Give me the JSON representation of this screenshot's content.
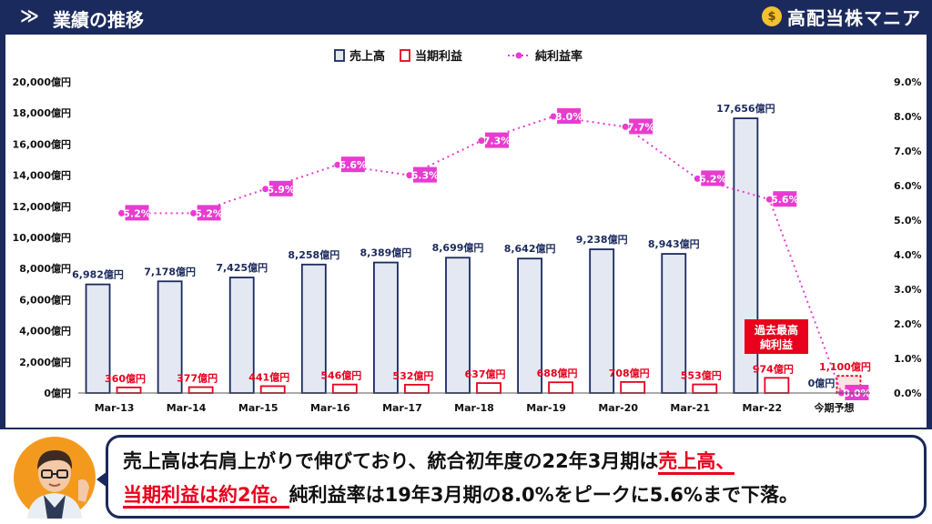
{
  "header": {
    "chevron": "≫",
    "title": "業績の推移"
  },
  "brand": {
    "icon_glyph": "$",
    "icon_name": "money-bag-icon",
    "name": "高配当株マニア"
  },
  "legend": {
    "sales": "売上高",
    "profit": "当期利益",
    "margin": "純利益率"
  },
  "annotation": {
    "line1": "過去最高",
    "line2": "純利益"
  },
  "chart_data": {
    "type": "bar",
    "categories": [
      "Mar-13",
      "Mar-14",
      "Mar-15",
      "Mar-16",
      "Mar-17",
      "Mar-18",
      "Mar-19",
      "Mar-20",
      "Mar-21",
      "Mar-22",
      "今期予想"
    ],
    "series": [
      {
        "name": "売上高",
        "type": "bar",
        "axis": "left",
        "values": [
          6982,
          7178,
          7425,
          8258,
          8389,
          8699,
          8642,
          9238,
          8943,
          17656,
          0
        ],
        "labels": [
          "6,982億円",
          "7,178億円",
          "7,425億円",
          "8,258億円",
          "8,389億円",
          "8,699億円",
          "8,642億円",
          "9,238億円",
          "8,943億円",
          "17,656億円",
          "0億円"
        ]
      },
      {
        "name": "当期利益",
        "type": "bar",
        "axis": "left",
        "values": [
          360,
          377,
          441,
          546,
          532,
          637,
          688,
          708,
          553,
          974,
          1100
        ],
        "labels": [
          "360億円",
          "377億円",
          "441億円",
          "546億円",
          "532億円",
          "637億円",
          "688億円",
          "708億円",
          "553億円",
          "974億円",
          "1,100億円"
        ]
      },
      {
        "name": "純利益率",
        "type": "line",
        "axis": "right",
        "values": [
          5.2,
          5.2,
          5.9,
          6.6,
          6.3,
          7.3,
          8.0,
          7.7,
          6.2,
          5.6,
          0.0
        ],
        "labels": [
          "5.2%",
          "5.2%",
          "5.9%",
          "6.6%",
          "6.3%",
          "7.3%",
          "8.0%",
          "7.7%",
          "6.2%",
          "5.6%",
          "0.0%"
        ]
      }
    ],
    "y_left": {
      "ylim": [
        0,
        20000
      ],
      "ticks": [
        0,
        2000,
        4000,
        6000,
        8000,
        10000,
        12000,
        14000,
        16000,
        18000,
        20000
      ],
      "tick_labels": [
        "0億円",
        "2,000億円",
        "4,000億円",
        "6,000億円",
        "8,000億円",
        "10,000億円",
        "12,000億円",
        "14,000億円",
        "16,000億円",
        "18,000億円",
        "20,000億円"
      ]
    },
    "y_right": {
      "ylim": [
        0,
        9
      ],
      "ticks": [
        0,
        1,
        2,
        3,
        4,
        5,
        6,
        7,
        8,
        9
      ],
      "tick_labels": [
        "0.0%",
        "1.0%",
        "2.0%",
        "3.0%",
        "4.0%",
        "5.0%",
        "6.0%",
        "7.0%",
        "8.0%",
        "9.0%"
      ]
    },
    "legend_position": "top-center",
    "grid": false,
    "colors": {
      "sales_fill": "#e4e8f2",
      "sales_stroke": "#1b2a5c",
      "profit_fill": "#ffffff",
      "profit_stroke": "#e8001c",
      "margin": "#e83ccf",
      "forecast_profit_fill": "#fde4e4"
    }
  },
  "caption": {
    "seg1": "売上高は右肩上がりで伸びており、統合初年度の22年3月期は",
    "seg2": "売上高、",
    "seg3": "当期利益は約2倍。",
    "seg4": "純利益率は19年3月期の8.0%をピークに5.6%まで下落。"
  }
}
